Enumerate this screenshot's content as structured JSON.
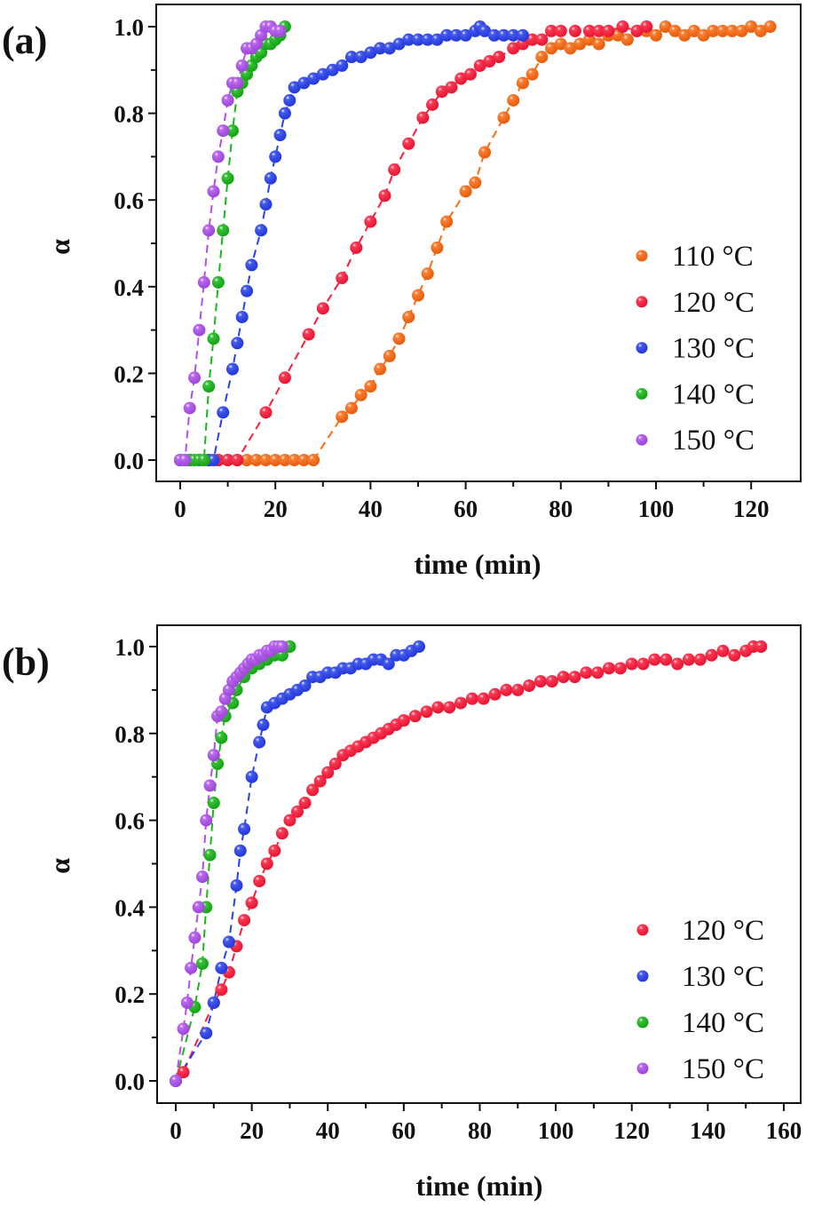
{
  "chart_data": [
    {
      "type": "scatter",
      "panel_label": "(a)",
      "title": "",
      "xlabel": "time (min)",
      "ylabel": "α",
      "xlim": [
        -5,
        130
      ],
      "ylim": [
        -0.05,
        1.05
      ],
      "xticks": [
        0,
        20,
        40,
        60,
        80,
        100,
        120
      ],
      "xtick_labels": [
        "0",
        "20",
        "40",
        "60",
        "80",
        "100",
        "120"
      ],
      "yticks": [
        0.0,
        0.2,
        0.4,
        0.6,
        0.8,
        1.0
      ],
      "ytick_labels": [
        "0.0",
        "0.2",
        "0.4",
        "0.6",
        "0.8",
        "1.0"
      ],
      "grid": false,
      "legend_position": "bottom-right",
      "series": [
        {
          "name": "110 °C",
          "color": "#ff6a10",
          "x": [
            0,
            2,
            4,
            6,
            8,
            10,
            12,
            14,
            16,
            18,
            20,
            22,
            24,
            26,
            28,
            34,
            36,
            38,
            40,
            42,
            44,
            46,
            48,
            50,
            52,
            54,
            56,
            60,
            62,
            64,
            68,
            70,
            72,
            74,
            76,
            78,
            80,
            82,
            84,
            86,
            88,
            90,
            92,
            94,
            96,
            98,
            100,
            102,
            104,
            106,
            108,
            110,
            112,
            114,
            116,
            118,
            120,
            122,
            124
          ],
          "y": [
            0,
            0,
            0,
            0,
            0,
            0,
            0,
            0,
            0,
            0,
            0,
            0,
            0,
            0,
            0,
            0.1,
            0.12,
            0.15,
            0.17,
            0.21,
            0.24,
            0.28,
            0.33,
            0.38,
            0.43,
            0.49,
            0.55,
            0.62,
            0.64,
            0.71,
            0.79,
            0.83,
            0.87,
            0.89,
            0.93,
            0.95,
            0.96,
            0.95,
            0.96,
            0.97,
            0.96,
            0.98,
            0.98,
            0.97,
            0.99,
            0.99,
            0.98,
            1.0,
            0.99,
            0.98,
            0.99,
            0.98,
            0.99,
            0.99,
            0.99,
            0.99,
            1.0,
            0.99,
            1.0
          ]
        },
        {
          "name": "120 °C",
          "color": "#ff1a3a",
          "x": [
            0,
            2,
            4,
            6,
            8,
            10,
            12,
            18,
            22,
            27,
            30,
            34,
            37,
            40,
            43,
            45,
            48,
            51,
            53,
            55,
            57,
            59,
            61,
            63,
            65,
            67,
            70,
            72,
            74,
            76,
            78,
            80,
            83,
            86,
            88,
            90,
            93,
            96,
            98
          ],
          "y": [
            0,
            0,
            0,
            0,
            0,
            0,
            0,
            0.11,
            0.19,
            0.29,
            0.35,
            0.42,
            0.49,
            0.55,
            0.61,
            0.67,
            0.73,
            0.79,
            0.82,
            0.85,
            0.86,
            0.88,
            0.89,
            0.91,
            0.92,
            0.93,
            0.95,
            0.96,
            0.97,
            0.97,
            0.99,
            0.99,
            0.99,
            0.99,
            0.99,
            0.99,
            1.0,
            0.99,
            1.0
          ]
        },
        {
          "name": "130 °C",
          "color": "#2840f0",
          "x": [
            0,
            2,
            4,
            6,
            7,
            9,
            11,
            12,
            13,
            14,
            15,
            17,
            18,
            19,
            20,
            21,
            22,
            23,
            24,
            26,
            28,
            30,
            32,
            34,
            36,
            38,
            40,
            42,
            44,
            46,
            48,
            50,
            52,
            54,
            56,
            58,
            60,
            62,
            63,
            64,
            66,
            68,
            70,
            72
          ],
          "y": [
            0,
            0,
            0,
            0,
            0,
            0.11,
            0.21,
            0.27,
            0.33,
            0.39,
            0.45,
            0.53,
            0.59,
            0.65,
            0.7,
            0.75,
            0.8,
            0.83,
            0.86,
            0.87,
            0.88,
            0.89,
            0.9,
            0.91,
            0.93,
            0.93,
            0.94,
            0.95,
            0.95,
            0.96,
            0.97,
            0.97,
            0.97,
            0.97,
            0.98,
            0.98,
            0.98,
            0.99,
            1.0,
            0.99,
            0.98,
            0.98,
            0.98,
            0.98
          ]
        },
        {
          "name": "140 °C",
          "color": "#18b818",
          "x": [
            0,
            1,
            2,
            3,
            4,
            5,
            6,
            7,
            8,
            9,
            10,
            11,
            12,
            13,
            14,
            15,
            16,
            17,
            18,
            19,
            20,
            21,
            22
          ],
          "y": [
            0,
            0,
            0,
            0,
            0,
            0,
            0.17,
            0.28,
            0.41,
            0.53,
            0.65,
            0.76,
            0.85,
            0.87,
            0.89,
            0.91,
            0.93,
            0.94,
            0.96,
            0.96,
            0.97,
            0.98,
            1.0
          ]
        },
        {
          "name": "150 °C",
          "color": "#b050f0",
          "x": [
            0,
            1,
            2,
            3,
            4,
            5,
            6,
            7,
            8,
            9,
            10,
            11,
            12,
            13,
            14,
            15,
            16,
            17,
            18,
            19,
            20,
            21
          ],
          "y": [
            0,
            0,
            0.12,
            0.19,
            0.3,
            0.41,
            0.53,
            0.62,
            0.7,
            0.76,
            0.83,
            0.87,
            0.87,
            0.91,
            0.95,
            0.95,
            0.96,
            0.98,
            1.0,
            1.0,
            0.99,
            0.99
          ]
        }
      ]
    },
    {
      "type": "scatter",
      "panel_label": "(b)",
      "title": "",
      "xlabel": "time (min)",
      "ylabel": "α",
      "xlim": [
        -5,
        165
      ],
      "ylim": [
        -0.05,
        1.05
      ],
      "xticks": [
        0,
        20,
        40,
        60,
        80,
        100,
        120,
        140,
        160
      ],
      "xtick_labels": [
        "0",
        "20",
        "40",
        "60",
        "80",
        "100",
        "120",
        "140",
        "160"
      ],
      "yticks": [
        0.0,
        0.2,
        0.4,
        0.6,
        0.8,
        1.0
      ],
      "ytick_labels": [
        "0.0",
        "0.2",
        "0.4",
        "0.6",
        "0.8",
        "1.0"
      ],
      "grid": false,
      "legend_position": "bottom-right",
      "series": [
        {
          "name": "120 °C",
          "color": "#ff1a3a",
          "x": [
            0,
            2,
            10,
            12,
            14,
            16,
            18,
            20,
            22,
            24,
            26,
            28,
            30,
            32,
            34,
            36,
            38,
            40,
            42,
            44,
            46,
            48,
            50,
            52,
            54,
            56,
            58,
            60,
            63,
            66,
            69,
            72,
            75,
            78,
            81,
            84,
            87,
            90,
            93,
            96,
            99,
            102,
            105,
            108,
            111,
            114,
            117,
            120,
            123,
            126,
            129,
            132,
            135,
            138,
            141,
            144,
            147,
            150,
            152,
            154
          ],
          "y": [
            0,
            0.02,
            0.18,
            0.21,
            0.25,
            0.31,
            0.37,
            0.41,
            0.46,
            0.5,
            0.53,
            0.57,
            0.6,
            0.62,
            0.64,
            0.67,
            0.69,
            0.71,
            0.73,
            0.75,
            0.76,
            0.77,
            0.78,
            0.79,
            0.8,
            0.81,
            0.82,
            0.83,
            0.84,
            0.85,
            0.86,
            0.86,
            0.87,
            0.88,
            0.88,
            0.89,
            0.9,
            0.9,
            0.91,
            0.92,
            0.92,
            0.93,
            0.93,
            0.94,
            0.94,
            0.95,
            0.95,
            0.96,
            0.96,
            0.97,
            0.97,
            0.96,
            0.97,
            0.97,
            0.98,
            0.99,
            0.98,
            0.99,
            1.0,
            1.0
          ]
        },
        {
          "name": "130 °C",
          "color": "#2840f0",
          "x": [
            0,
            8,
            10,
            12,
            14,
            16,
            17,
            18,
            20,
            22,
            23,
            24,
            26,
            28,
            30,
            32,
            34,
            36,
            38,
            40,
            42,
            44,
            46,
            48,
            50,
            52,
            54,
            56,
            58,
            60,
            62,
            64
          ],
          "y": [
            0,
            0.11,
            0.18,
            0.26,
            0.32,
            0.45,
            0.53,
            0.58,
            0.7,
            0.78,
            0.82,
            0.86,
            0.87,
            0.88,
            0.89,
            0.9,
            0.91,
            0.93,
            0.93,
            0.94,
            0.94,
            0.95,
            0.95,
            0.96,
            0.96,
            0.97,
            0.97,
            0.96,
            0.98,
            0.98,
            0.99,
            1.0
          ]
        },
        {
          "name": "140 °C",
          "color": "#18b818",
          "x": [
            0,
            5,
            7,
            8,
            9,
            10,
            11,
            12,
            13,
            15,
            16,
            18,
            20,
            22,
            24,
            26,
            28,
            30
          ],
          "y": [
            0,
            0.17,
            0.27,
            0.4,
            0.52,
            0.64,
            0.73,
            0.79,
            0.84,
            0.87,
            0.9,
            0.93,
            0.95,
            0.96,
            0.97,
            0.98,
            0.98,
            1.0
          ]
        },
        {
          "name": "150 °C",
          "color": "#b050f0",
          "x": [
            0,
            2,
            3,
            4,
            5,
            6,
            7,
            8,
            9,
            10,
            11,
            12,
            13,
            14,
            15,
            16,
            17,
            18,
            19,
            20,
            21,
            22,
            23,
            24,
            25,
            26,
            27,
            28
          ],
          "y": [
            0,
            0.12,
            0.18,
            0.26,
            0.33,
            0.4,
            0.47,
            0.6,
            0.68,
            0.75,
            0.84,
            0.85,
            0.88,
            0.9,
            0.92,
            0.93,
            0.94,
            0.95,
            0.96,
            0.97,
            0.97,
            0.98,
            0.98,
            0.99,
            0.99,
            1.0,
            1.0,
            1.0
          ]
        }
      ]
    }
  ]
}
